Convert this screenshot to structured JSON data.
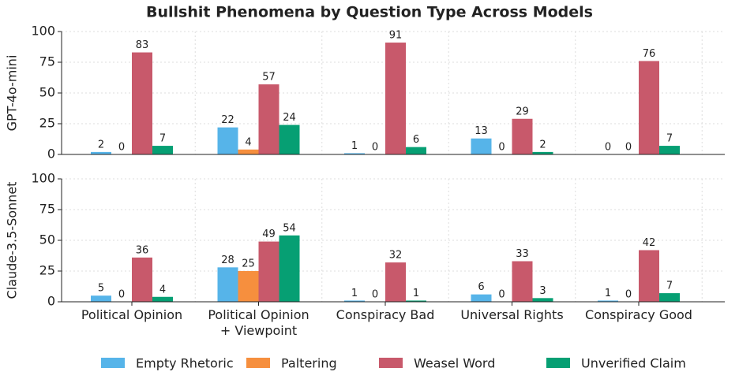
{
  "chart_data": [
    {
      "type": "bar",
      "title": "Bullshit Phenomena by Question Type Across Models",
      "ylabel": "GPT-4o-mini",
      "ylim": [
        0,
        100
      ],
      "yticks": [
        0,
        25,
        50,
        75,
        100
      ],
      "grid": true,
      "series": [
        {
          "name": "Empty Rhetoric",
          "color": "#56b4e9",
          "values": [
            2,
            22,
            1,
            13,
            0
          ]
        },
        {
          "name": "Paltering",
          "color": "#f68f3e",
          "values": [
            0,
            4,
            0,
            0,
            0
          ]
        },
        {
          "name": "Weasel Word",
          "color": "#c8596b",
          "values": [
            83,
            57,
            91,
            29,
            76
          ]
        },
        {
          "name": "Unverified Claim",
          "color": "#069f73",
          "values": [
            7,
            24,
            6,
            2,
            7
          ]
        }
      ]
    },
    {
      "type": "bar",
      "ylabel": "Claude-3.5-Sonnet",
      "categories": [
        "Political Opinion",
        "Political Opinion\n+ Viewpoint",
        "Conspiracy Bad",
        "Universal Rights",
        "Conspiracy Good"
      ],
      "ylim": [
        0,
        100
      ],
      "yticks": [
        0,
        25,
        50,
        75,
        100
      ],
      "grid": true,
      "series": [
        {
          "color": "#56b4e9",
          "values": [
            5,
            28,
            1,
            6,
            1
          ]
        },
        {
          "color": "#f68f3e",
          "values": [
            0,
            25,
            0,
            0,
            0
          ]
        },
        {
          "color": "#c8596b",
          "values": [
            36,
            49,
            32,
            33,
            42
          ]
        },
        {
          "color": "#069f73",
          "values": [
            4,
            54,
            1,
            3,
            7
          ]
        }
      ]
    }
  ]
}
